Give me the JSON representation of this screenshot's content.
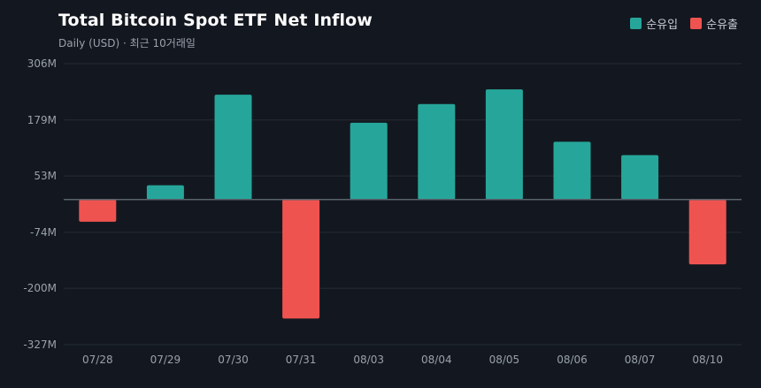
{
  "chart_data": {
    "type": "bar",
    "title": "Total Bitcoin Spot ETF Net Inflow",
    "subtitle": "Daily (USD) · 최근 10거래일",
    "categories": [
      "07/28",
      "07/29",
      "07/30",
      "07/31",
      "08/03",
      "08/04",
      "08/05",
      "08/06",
      "08/07",
      "08/10"
    ],
    "values": [
      -50,
      32,
      236,
      -268,
      173,
      215,
      248,
      130,
      100,
      -146
    ],
    "unit": "M",
    "ylim": [
      -327,
      306
    ],
    "yticks": [
      306,
      179,
      53,
      -74,
      -200,
      -327
    ],
    "ytick_labels": [
      "306M",
      "179M",
      "53M",
      "-74M",
      "-200M",
      "-327M"
    ],
    "legend": [
      {
        "label": "순유입",
        "color": "#26a69a"
      },
      {
        "label": "순유출",
        "color": "#ef5350"
      }
    ],
    "legend_position": "top-right",
    "grid": true,
    "colors": {
      "positive": "#26a69a",
      "negative": "#ef5350",
      "background": "#131820",
      "grid": "#252b34",
      "zero_line": "#5a626c"
    }
  }
}
